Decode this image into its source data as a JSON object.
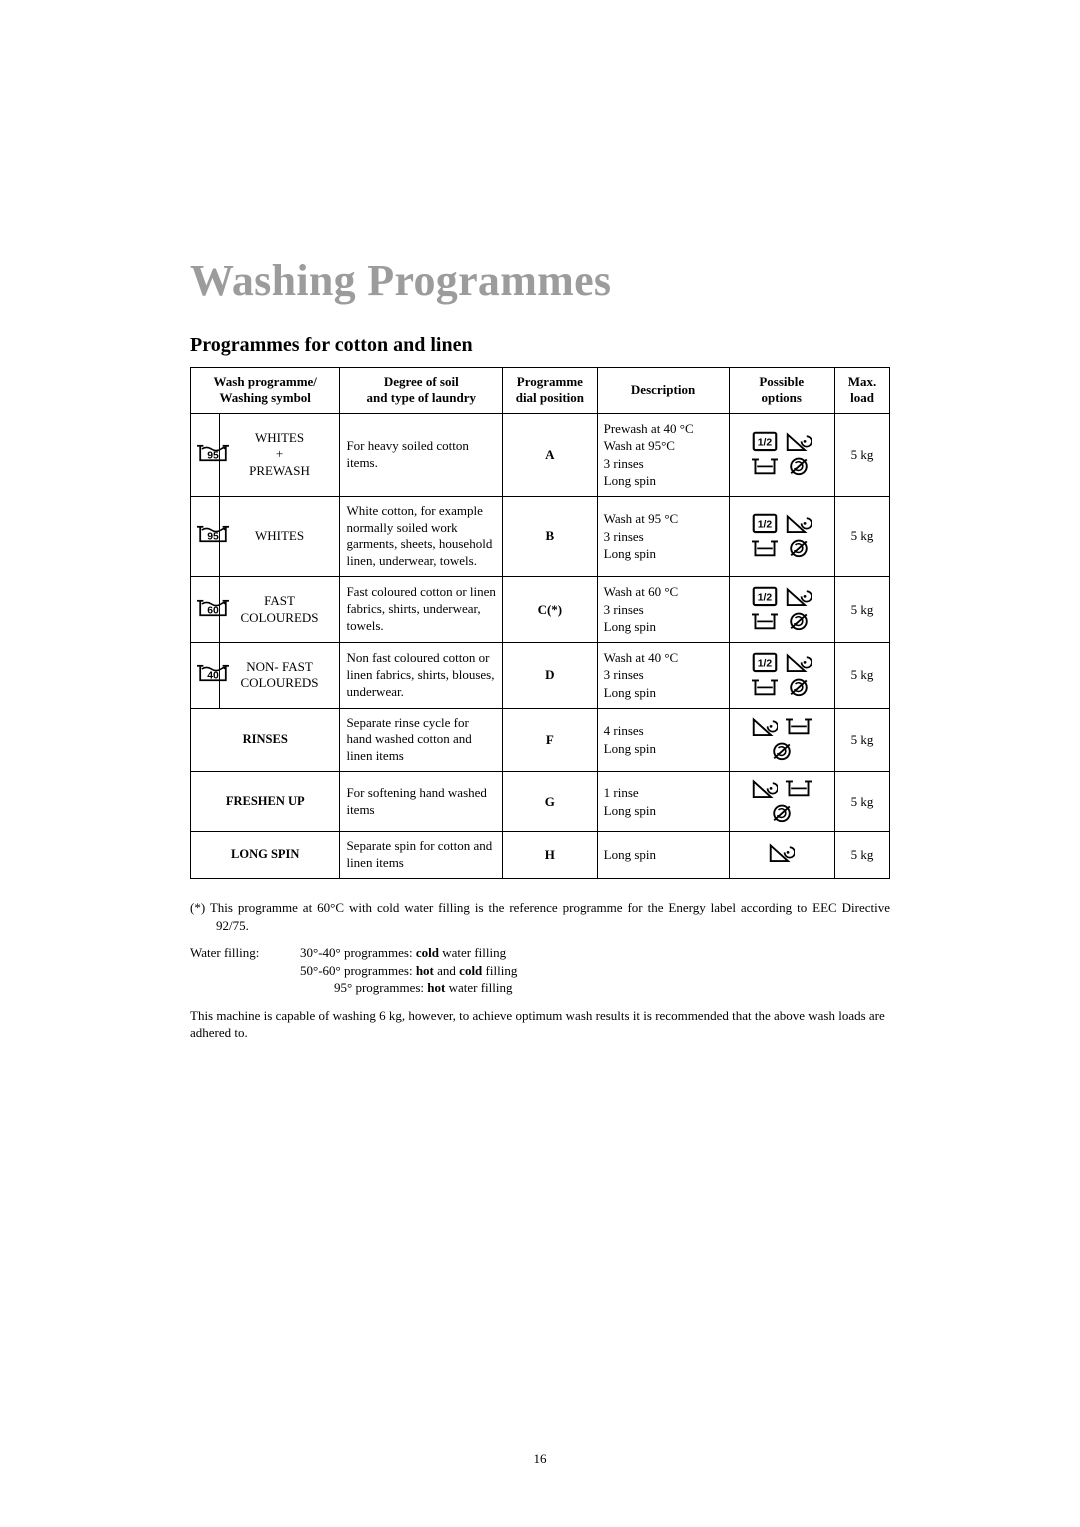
{
  "page": {
    "title": "Washing Programmes",
    "subtitle": "Programmes for cotton and linen",
    "pageNumber": "16"
  },
  "table": {
    "headers": {
      "programme": "Wash programme/\nWashing symbol",
      "soil": "Degree of soil\nand type of laundry",
      "dial": "Programme\ndial position",
      "desc": "Description",
      "opts": "Possible\noptions",
      "load": "Max.\nload"
    },
    "rows": [
      {
        "symbolTemp": "95",
        "name": "WHITES\n+\nPREWASH",
        "soil": "For heavy soiled cotton items.",
        "dial": "A",
        "desc": "Prewash at 40 °C\nWash at 95°C\n3 rinses\nLong spin",
        "options": [
          "half",
          "spin",
          "rinsehold",
          "nospin"
        ],
        "load": "5 kg"
      },
      {
        "symbolTemp": "95",
        "name": "WHITES",
        "soil": "White cotton, for example normally soiled work garments, sheets, household linen, underwear, towels.",
        "dial": "B",
        "desc": "Wash at 95 °C\n3 rinses\nLong spin",
        "options": [
          "half",
          "spin",
          "rinsehold",
          "nospin"
        ],
        "load": "5 kg"
      },
      {
        "symbolTemp": "60",
        "name": "FAST\nCOLOUREDS",
        "soil": "Fast coloured cotton or linen fabrics, shirts, underwear, towels.",
        "dial": "C(*)",
        "desc": "Wash at 60 °C\n3 rinses\nLong spin",
        "options": [
          "half",
          "spin",
          "rinsehold",
          "nospin"
        ],
        "load": "5 kg"
      },
      {
        "symbolTemp": "40",
        "name": "NON- FAST\nCOLOUREDS",
        "soil": "Non fast coloured cotton or linen fabrics, shirts, blouses, underwear.",
        "dial": "D",
        "desc": "Wash at 40 °C\n3 rinses\nLong spin",
        "options": [
          "half",
          "spin",
          "rinsehold",
          "nospin"
        ],
        "load": "5 kg"
      },
      {
        "symbolTemp": "",
        "name": "RINSES",
        "soil": "Separate rinse cycle for hand washed cotton and linen items",
        "dial": "F",
        "desc": "4 rinses\nLong spin",
        "options": [
          "spin",
          "rinsehold",
          "nospin"
        ],
        "load": "5 kg"
      },
      {
        "symbolTemp": "",
        "name": "FRESHEN UP",
        "soil": "For softening hand washed items",
        "dial": "G",
        "desc": "1 rinse\nLong spin",
        "options": [
          "spin",
          "rinsehold",
          "nospin"
        ],
        "load": "5 kg"
      },
      {
        "symbolTemp": "",
        "name": "LONG SPIN",
        "soil": "Separate spin for cotton and linen items",
        "dial": "H",
        "desc": "Long spin",
        "options": [
          "spin"
        ],
        "load": "5 kg"
      }
    ]
  },
  "footnotes": {
    "star": "(*)  This programme at 60°C with cold water filling is the reference programme for the Energy label according to EEC Directive 92/75.",
    "waterFillingLabel": "Water filling:",
    "waterFilling": [
      {
        "range": "30°-40° programmes: ",
        "bold": "cold",
        "tail": " water filling"
      },
      {
        "range": "50°-60° programmes: ",
        "bold": "hot",
        "mid": " and ",
        "bold2": "cold",
        "tail": " filling"
      },
      {
        "range": "95° programmes: ",
        "bold": "hot",
        "tail": " water filling",
        "indent": true
      }
    ],
    "capacity": "This machine is capable of washing 6 kg, however, to achieve optimum wash results it is recommended that the above wash loads are adhered to."
  },
  "style": {
    "titleColor": "#9c9c9c",
    "borderColor": "#000000",
    "textColor": "#000000",
    "bgColor": "#ffffff",
    "titleFontSize": 44,
    "subtitleFontSize": 20,
    "bodyFontSize": 13,
    "dialFontSize": 20,
    "tableWidth": 700
  }
}
